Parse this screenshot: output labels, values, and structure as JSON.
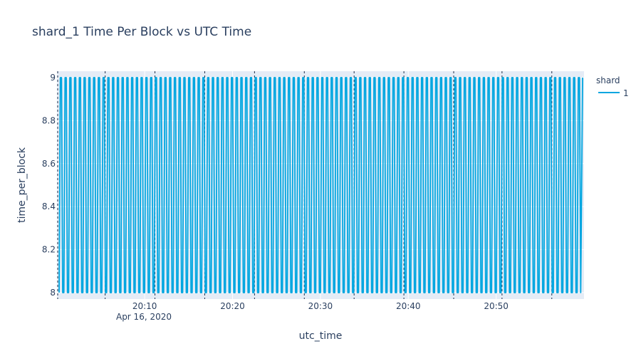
{
  "chart_data": {
    "type": "line",
    "title": "shard_1 Time Per Block vs UTC Time",
    "xlabel": "utc_time",
    "ylabel": "time_per_block",
    "x_range": [
      "2020-04-16 20:00:01",
      "2020-04-16 21:00:00"
    ],
    "ylim": [
      7.97,
      9.03
    ],
    "y_ticks": [
      8,
      8.2,
      8.4,
      8.6,
      8.8,
      9
    ],
    "y_tick_labels": [
      "8",
      "8.2",
      "8.4",
      "8.6",
      "8.8",
      "9"
    ],
    "x_ticks": [
      "20:10",
      "20:20",
      "20:30",
      "20:40",
      "20:50"
    ],
    "x_tick_date": "Apr 16, 2020",
    "legend_title": "shard",
    "legend_position": "right",
    "plot_background": "#e5ecf6",
    "grid": true,
    "vertical_marker_lines": [
      "20:00",
      "20:05:30",
      "20:11:10",
      "20:16:50",
      "20:22:30",
      "20:28:10",
      "20:33:50",
      "20:39:30",
      "20:45:10",
      "20:50:40",
      "20:56:20"
    ],
    "series": [
      {
        "name": "1",
        "color": "#00a6e0",
        "pattern": "alternating between 8 and 9",
        "oscillation_count": 110,
        "values": [
          8,
          9
        ]
      }
    ]
  }
}
